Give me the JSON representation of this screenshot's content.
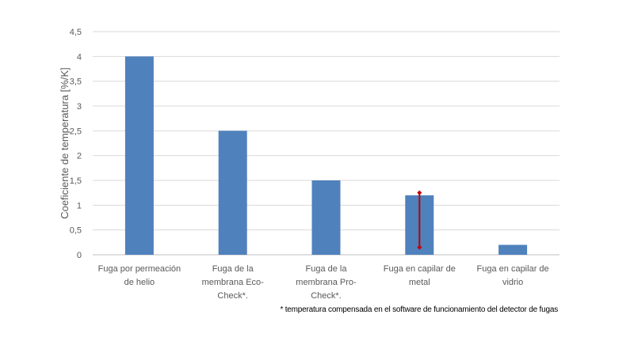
{
  "chart_data": {
    "type": "bar",
    "title": "",
    "xlabel": "",
    "ylabel": "Coeficiente de temperatura [%/K]",
    "categories": [
      [
        "Fuga por permeación",
        "de helio"
      ],
      [
        "Fuga de la",
        "membrana Eco-",
        "Check*."
      ],
      [
        "Fuga de la",
        "membrana Pro-",
        "Check*."
      ],
      [
        "Fuga en capilar de",
        "metal"
      ],
      [
        "Fuga en capilar de",
        "vidrio"
      ]
    ],
    "values": [
      4,
      2.5,
      1.5,
      1.2,
      0.2
    ],
    "error_bars": [
      null,
      null,
      null,
      {
        "low": 0.15,
        "high": 1.25
      },
      null
    ],
    "ylim": [
      0,
      4.5
    ],
    "yticks": [
      "0",
      "0,5",
      "1",
      "1,5",
      "2",
      "2,5",
      "3",
      "3,5",
      "4",
      "4,5"
    ],
    "grid": true,
    "legend": "none",
    "colors": {
      "bar": "#4f81bd",
      "error_bar": "#c00000",
      "grid": "#d9d9d9",
      "text": "#595959"
    },
    "footnote": "* temperatura compensada en el software de funcionamiento del detector de fugas"
  }
}
